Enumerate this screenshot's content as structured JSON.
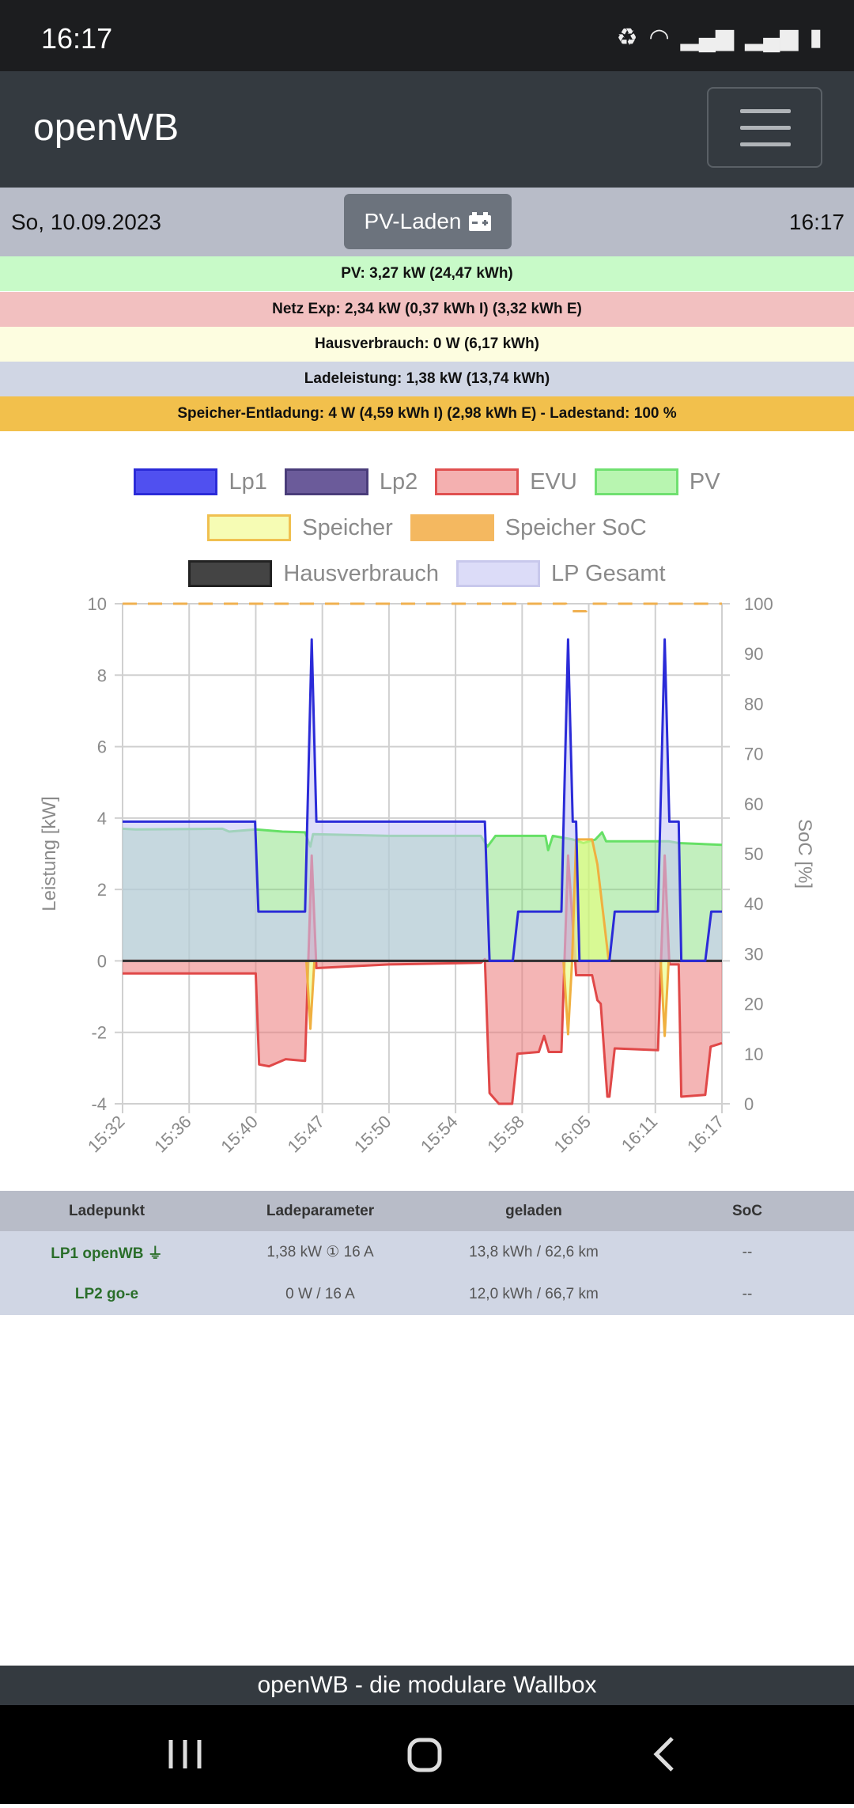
{
  "status_bar": {
    "time": "16:17",
    "icons": [
      "battery-saver-icon",
      "wifi-icon",
      "signal-icon",
      "signal-icon",
      "battery-icon"
    ]
  },
  "header": {
    "brand": "openWB",
    "menu_icon": "hamburger-icon"
  },
  "datebar": {
    "date": "So, 10.09.2023",
    "mode_label": "PV-Laden",
    "mode_icon": "car-battery-icon",
    "time": "16:17"
  },
  "info": {
    "pv": "PV: 3,27 kW (24,47 kWh)",
    "netz": "Netz Exp: 2,34 kW (0,37 kWh I) (3,32 kWh E)",
    "haus": "Hausverbrauch: 0 W (6,17 kWh)",
    "lade": "Ladeleistung: 1,38 kW (13,74 kWh)",
    "speicher": "Speicher-Entladung: 4 W (4,59 kWh I) (2,98 kWh E) - Ladestand: 100 %"
  },
  "colors": {
    "pv": "#c8fac8",
    "netz": "#f2c0c0",
    "haus": "#fdfde0",
    "lade": "#d0d6e4",
    "speicher": "#f2c04c"
  },
  "chart_data": {
    "type": "line",
    "title": "",
    "ylabel": "Leistung [kW]",
    "y2label": "SoC [%]",
    "ylim": [
      -4,
      10
    ],
    "y2lim": [
      0,
      100
    ],
    "yticks": [
      "10",
      "8",
      "6",
      "4",
      "2",
      "0",
      "-2",
      "-4"
    ],
    "y2ticks": [
      "100",
      "90",
      "80",
      "70",
      "60",
      "50",
      "40",
      "30",
      "20",
      "10",
      "0"
    ],
    "x_labels": [
      "15:32",
      "15:36",
      "15:40",
      "15:47",
      "15:50",
      "15:54",
      "15:58",
      "16:05",
      "16:11",
      "16:17"
    ],
    "xlim": [
      0,
      90
    ],
    "grid": true,
    "legend_position": "top",
    "legend": [
      {
        "name": "Lp1",
        "fill": "#5050f0",
        "border": "#2b2bd8"
      },
      {
        "name": "Lp2",
        "fill": "#6b5b9a",
        "border": "#4a3d7a"
      },
      {
        "name": "EVU",
        "fill": "#f4b0b0",
        "border": "#e05050"
      },
      {
        "name": "PV",
        "fill": "#b8f5b0",
        "border": "#70e070"
      },
      {
        "name": "Speicher",
        "fill": "#f6fcb4",
        "border": "#f0c050",
        "row": 2
      },
      {
        "name": "Speicher SoC",
        "fill": "#f4b860",
        "border": "#f4b860",
        "dashed": true,
        "row": 2
      },
      {
        "name": "Hausverbrauch",
        "fill": "#444444",
        "border": "#222222",
        "row": 3
      },
      {
        "name": "LP Gesamt",
        "fill": "#dcdcf8",
        "border": "#c8c8ec",
        "row": 3
      }
    ],
    "series": [
      {
        "name": "PV",
        "fill": "rgba(120,220,110,0.45)",
        "line": "#66e066",
        "points": [
          [
            0,
            3.7
          ],
          [
            2,
            3.68
          ],
          [
            15,
            3.7
          ],
          [
            16,
            3.62
          ],
          [
            20,
            3.68
          ],
          [
            24,
            3.62
          ],
          [
            27.4,
            3.6
          ],
          [
            28.2,
            3.2
          ],
          [
            28.6,
            3.55
          ],
          [
            40,
            3.5
          ],
          [
            53.8,
            3.5
          ],
          [
            54.8,
            3.2
          ],
          [
            56,
            3.5
          ],
          [
            63.5,
            3.5
          ],
          [
            63.9,
            3.1
          ],
          [
            64.6,
            3.5
          ],
          [
            67.6,
            3.4
          ],
          [
            69.2,
            3.3
          ],
          [
            71,
            3.4
          ],
          [
            72,
            3.6
          ],
          [
            72.6,
            3.35
          ],
          [
            82,
            3.35
          ],
          [
            83.5,
            3.3
          ],
          [
            90,
            3.25
          ]
        ]
      },
      {
        "name": "EVU",
        "fill": "rgba(235,120,120,0.55)",
        "line": "#e04848",
        "points": [
          [
            0,
            -0.35
          ],
          [
            20,
            -0.35
          ],
          [
            20.5,
            -2.9
          ],
          [
            22,
            -2.95
          ],
          [
            24.5,
            -2.75
          ],
          [
            27.4,
            -2.8
          ],
          [
            28.4,
            2.95
          ],
          [
            29.1,
            -0.2
          ],
          [
            40,
            -0.1
          ],
          [
            53.8,
            -0.05
          ],
          [
            54.4,
            0.05
          ],
          [
            55.1,
            -3.7
          ],
          [
            56.5,
            -4
          ],
          [
            58.5,
            -4
          ],
          [
            59.3,
            -2.6
          ],
          [
            62.5,
            -2.55
          ],
          [
            63.3,
            -2.1
          ],
          [
            64,
            -2.55
          ],
          [
            65.9,
            -2.55
          ],
          [
            66.9,
            2.95
          ],
          [
            68.1,
            -0.4
          ],
          [
            70.5,
            -0.4
          ],
          [
            71.3,
            -1.1
          ],
          [
            71.8,
            -1.2
          ],
          [
            72.8,
            -3.8
          ],
          [
            73.1,
            -3.8
          ],
          [
            73.9,
            -2.45
          ],
          [
            80.4,
            -2.5
          ],
          [
            81.4,
            2.95
          ],
          [
            82.1,
            -0.1
          ],
          [
            83.5,
            -0.1
          ],
          [
            83.9,
            -3.8
          ],
          [
            87.5,
            -3.75
          ],
          [
            88.3,
            -2.4
          ],
          [
            90,
            -2.3
          ]
        ]
      },
      {
        "name": "LP Gesamt",
        "fill": "rgba(200,200,245,0.6)",
        "line": "none",
        "points": [
          [
            0,
            3.9
          ],
          [
            19.9,
            3.9
          ],
          [
            20.4,
            1.38
          ],
          [
            27.4,
            1.38
          ],
          [
            28.4,
            9
          ],
          [
            29.1,
            3.9
          ],
          [
            54.4,
            3.9
          ],
          [
            55.1,
            0
          ],
          [
            58.6,
            0
          ],
          [
            59.4,
            1.38
          ],
          [
            65.9,
            1.38
          ],
          [
            66.9,
            9
          ],
          [
            67.6,
            3.9
          ],
          [
            68.1,
            3.9
          ],
          [
            68.6,
            0
          ],
          [
            73.1,
            0
          ],
          [
            73.9,
            1.38
          ],
          [
            80.4,
            1.38
          ],
          [
            81.4,
            9
          ],
          [
            82.1,
            3.9
          ],
          [
            83.5,
            3.9
          ],
          [
            83.9,
            0
          ],
          [
            87.5,
            0
          ],
          [
            88.4,
            1.38
          ],
          [
            90,
            1.38
          ]
        ]
      },
      {
        "name": "Speicher",
        "fill": "rgba(230,255,120,0.6)",
        "line": "#f0b040",
        "points": [
          [
            0,
            0
          ],
          [
            27.6,
            0
          ],
          [
            28.2,
            -1.9
          ],
          [
            28.8,
            0
          ],
          [
            66.2,
            0
          ],
          [
            66.9,
            -2.05
          ],
          [
            67.5,
            0
          ],
          [
            68.1,
            3.4
          ],
          [
            70.5,
            3.4
          ],
          [
            71.3,
            2.7
          ],
          [
            73,
            0
          ],
          [
            80.8,
            0
          ],
          [
            81.4,
            -2.1
          ],
          [
            82,
            0
          ],
          [
            90,
            0
          ]
        ]
      },
      {
        "name": "Lp2",
        "fill": "none",
        "line": "#6b5b9a",
        "points": [
          [
            0,
            0
          ],
          [
            90,
            0
          ]
        ]
      },
      {
        "name": "Hausverbrauch",
        "fill": "none",
        "line": "#333333",
        "points": [
          [
            0,
            0
          ],
          [
            90,
            0
          ]
        ]
      },
      {
        "name": "Lp1",
        "fill": "none",
        "line": "#2b2bd8",
        "points": [
          [
            0,
            3.9
          ],
          [
            19.9,
            3.9
          ],
          [
            20.4,
            1.38
          ],
          [
            27.4,
            1.38
          ],
          [
            28.4,
            9
          ],
          [
            29.1,
            3.9
          ],
          [
            54.4,
            3.9
          ],
          [
            55.1,
            0
          ],
          [
            58.6,
            0
          ],
          [
            59.4,
            1.38
          ],
          [
            65.9,
            1.38
          ],
          [
            66.9,
            9
          ],
          [
            67.6,
            3.9
          ],
          [
            68.1,
            3.9
          ],
          [
            68.6,
            0
          ],
          [
            73.1,
            0
          ],
          [
            73.9,
            1.38
          ],
          [
            80.4,
            1.38
          ],
          [
            81.4,
            9
          ],
          [
            82.1,
            3.9
          ],
          [
            83.5,
            3.9
          ],
          [
            83.9,
            0
          ],
          [
            87.5,
            0
          ],
          [
            88.4,
            1.38
          ],
          [
            90,
            1.38
          ]
        ]
      },
      {
        "name": "Speicher SoC",
        "axis": "right",
        "fill": "none",
        "line": "#f0b050",
        "dashed": true,
        "points": [
          [
            0,
            100
          ],
          [
            66.6,
            100
          ],
          [
            67,
            98.5
          ],
          [
            69.6,
            98.5
          ],
          [
            70,
            100
          ],
          [
            90,
            100
          ]
        ]
      }
    ]
  },
  "table": {
    "headers": [
      "Ladepunkt",
      "Ladeparameter",
      "geladen",
      "SoC"
    ],
    "rows": [
      {
        "name": "LP1 openWB",
        "plug_icon": "plug-icon",
        "param": "1,38 kW ① 16 A",
        "charged": "13,8 kWh / 62,6 km",
        "soc": "--"
      },
      {
        "name": "LP2 go-e",
        "param": "0 W / 16 A",
        "charged": "12,0 kWh / 66,7 km",
        "soc": "--"
      }
    ]
  },
  "footer": {
    "text": "openWB - die modulare Wallbox"
  }
}
